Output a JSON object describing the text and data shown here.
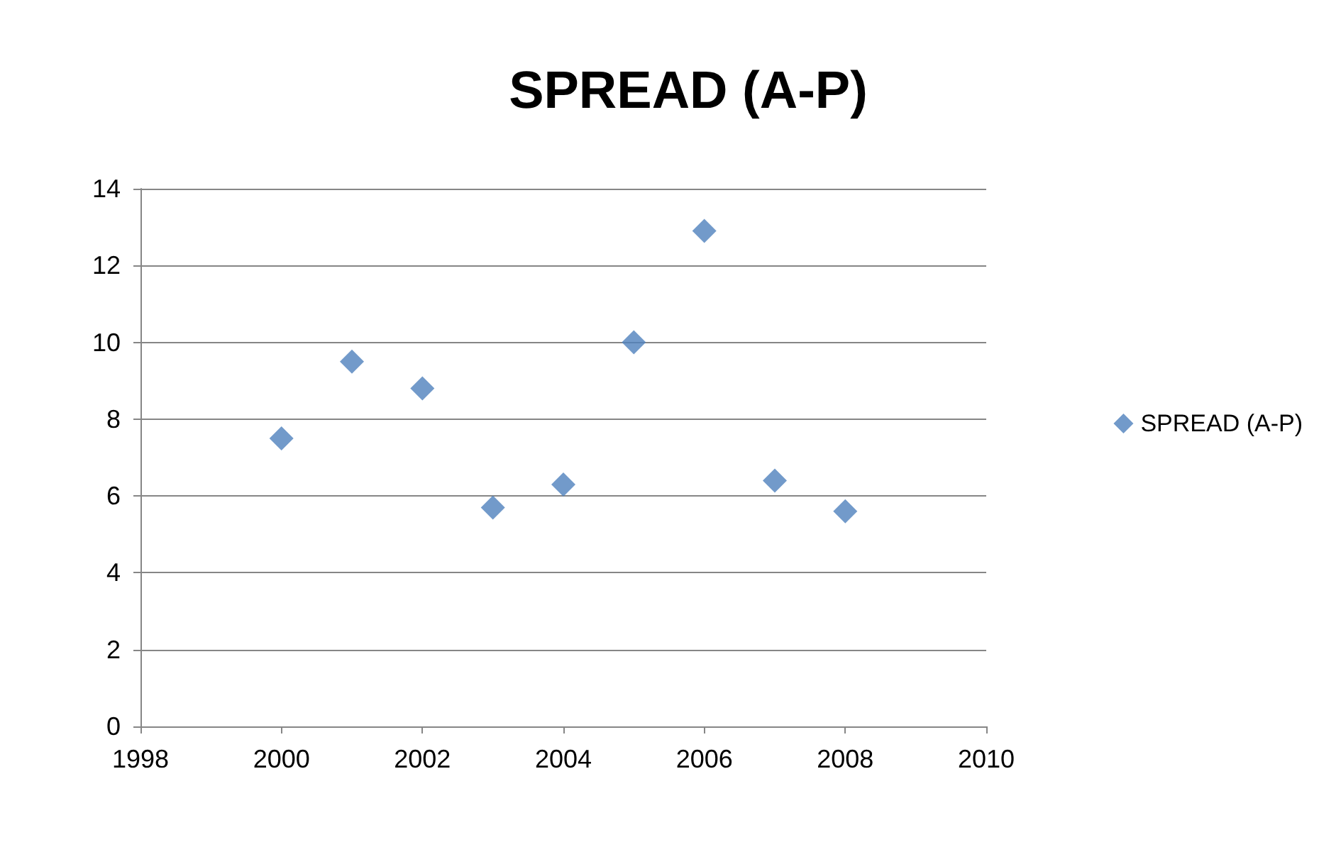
{
  "chart_data": {
    "type": "scatter",
    "title": "SPREAD (A-P)",
    "x": [
      2000,
      2001,
      2002,
      2003,
      2004,
      2005,
      2006,
      2007,
      2008
    ],
    "series": [
      {
        "name": "SPREAD (A-P)",
        "color": "#4f81bd",
        "values": [
          7.5,
          9.5,
          8.8,
          5.7,
          6.3,
          10,
          12.9,
          6.4,
          5.6
        ]
      }
    ],
    "xlim": [
      1998,
      2010
    ],
    "xticks": [
      1998,
      2000,
      2002,
      2004,
      2006,
      2008,
      2010
    ],
    "ylim": [
      0,
      14
    ],
    "yticks": [
      0,
      2,
      4,
      6,
      8,
      10,
      12,
      14
    ],
    "grid": "y",
    "legend": "right",
    "marker": "diamond"
  }
}
